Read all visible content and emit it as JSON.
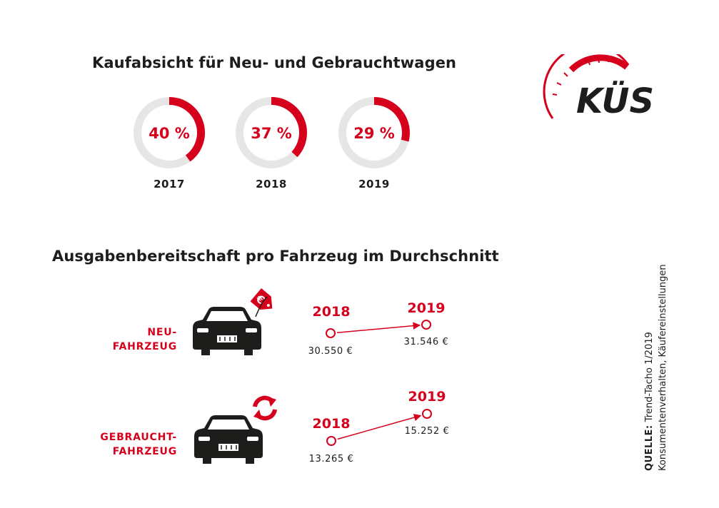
{
  "colors": {
    "accent": "#d6001c",
    "ring_bg": "#e6e6e6",
    "text": "#1d1d1b"
  },
  "section1": {
    "title": "Kaufabsicht für Neu- und Gebrauchtwagen"
  },
  "section2": {
    "title": "Ausgabenbereitschaft pro Fahrzeug im Durchschnitt"
  },
  "logo": {
    "text": "KÜS"
  },
  "source": {
    "label": "QUELLE:",
    "text": "Trend-Tacho 1/2019",
    "line2": "Konsumentenverhalten, Käufereinstellungen"
  },
  "chart_data": [
    {
      "type": "pie",
      "variant": "donut",
      "title": "Kaufabsicht für Neu- und Gebrauchtwagen",
      "categories": [
        "2017",
        "2018",
        "2019"
      ],
      "values": [
        40,
        37,
        29
      ],
      "value_labels": [
        "40 %",
        "37 %",
        "29 %"
      ],
      "unit": "%"
    },
    {
      "type": "scatter",
      "variant": "arrow-comparison",
      "title": "Ausgabenbereitschaft pro Fahrzeug im Durchschnitt",
      "x": [
        "2018",
        "2019"
      ],
      "series": [
        {
          "name": "NEU-FAHRZEUG",
          "label_lines": [
            "NEU-",
            "FAHRZEUG"
          ],
          "icon": "car-with-euro-tag-icon",
          "values": [
            30550,
            31546
          ],
          "value_labels": [
            "30.550 €",
            "31.546 €"
          ]
        },
        {
          "name": "GEBRAUCHT-FAHRZEUG",
          "label_lines": [
            "GEBRAUCHT-",
            "FAHRZEUG"
          ],
          "icon": "car-with-recycle-arrows-icon",
          "values": [
            13265,
            15252
          ],
          "value_labels": [
            "13.265 €",
            "15.252 €"
          ]
        }
      ],
      "unit": "€"
    }
  ]
}
